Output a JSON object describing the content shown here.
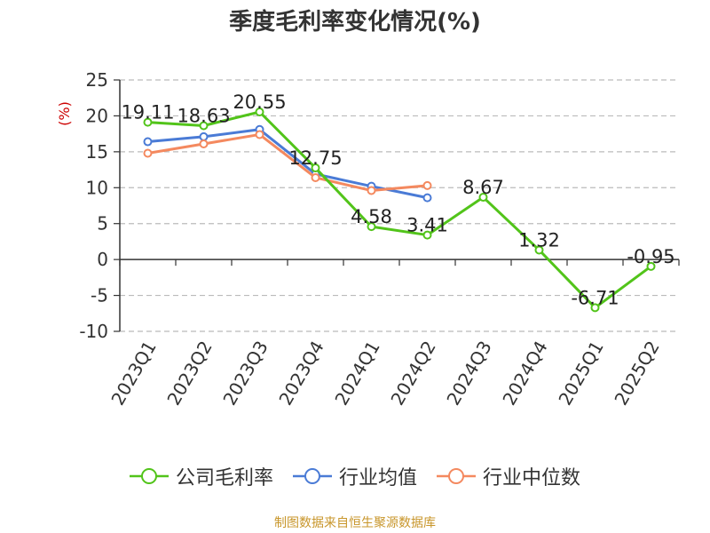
{
  "title": "季度毛利率变化情况(%)",
  "source": "制图数据来自恒生聚源数据库",
  "colors": {
    "gross": "#52c41a",
    "avg": "#4a7bd6",
    "median": "#f4895f",
    "unit": "#cc0000",
    "grid": "#bbbbbb",
    "axis": "#333333"
  },
  "chart_data": {
    "type": "line",
    "title": "季度毛利率变化情况(%)",
    "ylabel": "(%)",
    "xlabel": "",
    "ylim": [
      -10,
      25
    ],
    "yticks": [
      25,
      20,
      15,
      10,
      5,
      0,
      -5,
      -10
    ],
    "grid": "horizontal dashed",
    "legend_position": "bottom",
    "categories": [
      "2023Q1",
      "2023Q2",
      "2023Q3",
      "2023Q4",
      "2024Q1",
      "2024Q2",
      "2024Q3",
      "2024Q4",
      "2025Q1",
      "2025Q2"
    ],
    "series": [
      {
        "name": "公司毛利率",
        "color": "#52c41a",
        "values": [
          19.11,
          18.63,
          20.55,
          12.75,
          4.58,
          3.41,
          8.67,
          1.32,
          -6.71,
          -0.95
        ],
        "labels": [
          "19.11",
          "18.63",
          "20.55",
          "12.75",
          "4.58",
          "3.41",
          "8.67",
          "1.32",
          "-6.71",
          "-0.95"
        ]
      },
      {
        "name": "行业均值",
        "color": "#4a7bd6",
        "values": [
          16.4,
          17.1,
          18.1,
          11.9,
          10.2,
          8.6,
          null,
          null,
          null,
          null
        ]
      },
      {
        "name": "行业中位数",
        "color": "#f4895f",
        "values": [
          14.8,
          16.1,
          17.4,
          11.4,
          9.6,
          10.3,
          null,
          null,
          null,
          null
        ]
      }
    ]
  }
}
